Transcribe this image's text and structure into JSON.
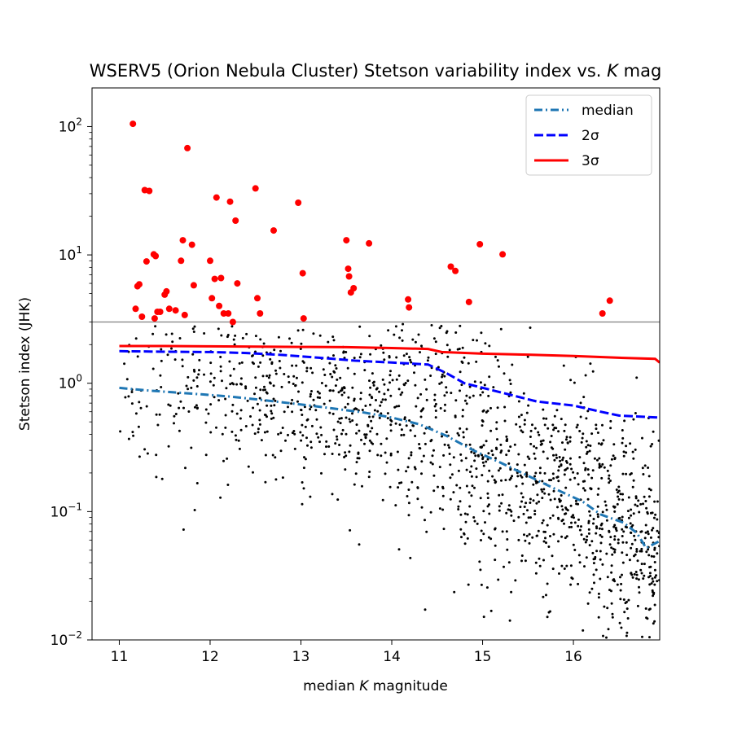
{
  "chart_data": {
    "type": "scatter",
    "title": "WSERV5 (Orion Nebula Cluster) Stetson variability index vs. K mag",
    "title_parts": [
      "WSERV5 (Orion Nebula Cluster) Stetson variability index vs. ",
      "K",
      " mag"
    ],
    "xlabel": "median K magnitude",
    "xlabel_parts": [
      "median ",
      "K",
      " magnitude"
    ],
    "ylabel": "Stetson index (JHK)",
    "xlim": [
      10.7,
      16.95
    ],
    "ylim": [
      0.01,
      200
    ],
    "yscale": "log",
    "x_ticks": [
      11,
      12,
      13,
      14,
      15,
      16
    ],
    "x_tick_labels": [
      "11",
      "12",
      "13",
      "14",
      "15",
      "16"
    ],
    "y_ticks": [
      0.01,
      0.1,
      1,
      10,
      100
    ],
    "y_tick_labels": [
      {
        "base": "10",
        "exp": "−2"
      },
      {
        "base": "10",
        "exp": "−1"
      },
      {
        "base": "10",
        "exp": "0"
      },
      {
        "base": "10",
        "exp": "1"
      },
      {
        "base": "10",
        "exp": "2"
      }
    ],
    "threshold_line": {
      "y": 3.0,
      "color": "#808080"
    },
    "legend": {
      "placement": "top-right",
      "entries": [
        {
          "label": "median",
          "color": "#1f77b4",
          "style": "dashdot"
        },
        {
          "label": "2σ",
          "color": "#0000ff",
          "style": "dashed"
        },
        {
          "label": "3σ",
          "color": "#ff0000",
          "style": "solid"
        }
      ]
    },
    "series": [
      {
        "name": "median",
        "color": "#1f77b4",
        "style": "dashdot",
        "x": [
          11.0,
          11.3,
          11.6,
          11.9,
          12.2,
          12.5,
          12.8,
          13.1,
          13.4,
          13.7,
          14.0,
          14.3,
          14.6,
          14.9,
          15.2,
          15.5,
          15.8,
          16.1,
          16.3,
          16.55,
          16.7,
          16.8,
          16.95
        ],
        "values": [
          0.92,
          0.88,
          0.85,
          0.82,
          0.79,
          0.75,
          0.71,
          0.67,
          0.63,
          0.59,
          0.54,
          0.48,
          0.39,
          0.3,
          0.24,
          0.19,
          0.15,
          0.12,
          0.095,
          0.082,
          0.068,
          0.052,
          0.059
        ]
      },
      {
        "name": "2σ",
        "color": "#0000ff",
        "style": "dashed",
        "x": [
          11.0,
          11.5,
          12.0,
          12.4,
          12.8,
          13.2,
          13.6,
          14.0,
          14.4,
          14.6,
          14.8,
          15.2,
          15.6,
          16.0,
          16.3,
          16.5,
          16.95
        ],
        "values": [
          1.78,
          1.76,
          1.75,
          1.72,
          1.66,
          1.58,
          1.5,
          1.45,
          1.4,
          1.2,
          1.0,
          0.85,
          0.72,
          0.67,
          0.6,
          0.56,
          0.54
        ]
      },
      {
        "name": "3σ",
        "color": "#ff0000",
        "style": "solid",
        "x": [
          11.0,
          11.5,
          12.0,
          12.5,
          13.0,
          13.5,
          14.0,
          14.4,
          14.55,
          15.0,
          15.5,
          16.0,
          16.5,
          16.9,
          16.95
        ],
        "values": [
          1.95,
          1.95,
          1.94,
          1.93,
          1.92,
          1.91,
          1.88,
          1.85,
          1.75,
          1.7,
          1.67,
          1.63,
          1.58,
          1.55,
          1.45
        ]
      }
    ],
    "variable_points": {
      "color": "#ff0000",
      "x": [
        11.15,
        11.18,
        11.2,
        11.22,
        11.25,
        11.28,
        11.3,
        11.33,
        11.38,
        11.39,
        11.4,
        11.42,
        11.45,
        11.5,
        11.52,
        11.55,
        11.62,
        11.68,
        11.7,
        11.72,
        11.75,
        11.8,
        11.82,
        12.0,
        12.02,
        12.05,
        12.07,
        12.1,
        12.12,
        12.15,
        12.2,
        12.22,
        12.25,
        12.28,
        12.3,
        12.5,
        12.52,
        12.55,
        12.7,
        12.97,
        13.02,
        13.03,
        13.5,
        13.52,
        13.53,
        13.55,
        13.58,
        13.75,
        14.18,
        14.19,
        14.65,
        14.7,
        14.85,
        14.97,
        15.22,
        16.32,
        16.4
      ],
      "values": [
        105,
        3.8,
        5.7,
        5.9,
        3.3,
        32,
        8.9,
        31.5,
        10.1,
        3.2,
        9.8,
        3.6,
        3.6,
        4.9,
        5.2,
        3.8,
        3.7,
        9.0,
        13.0,
        3.4,
        68,
        12.0,
        5.8,
        9.0,
        4.6,
        6.5,
        28,
        4.0,
        6.6,
        3.5,
        3.5,
        26,
        3.0,
        18.5,
        6.0,
        33,
        4.6,
        3.5,
        15.5,
        25.5,
        7.2,
        3.2,
        13.0,
        7.8,
        6.8,
        5.1,
        5.5,
        12.3,
        4.5,
        3.9,
        8.1,
        7.5,
        4.3,
        12.1,
        10.1,
        3.5,
        4.4
      ]
    },
    "non_variable_points": {
      "color": "#000000",
      "note": "approximately 1500 stars with Stetson index 0.01–3, concentrated below the median and 2σ curves; values not individually labeled"
    }
  }
}
